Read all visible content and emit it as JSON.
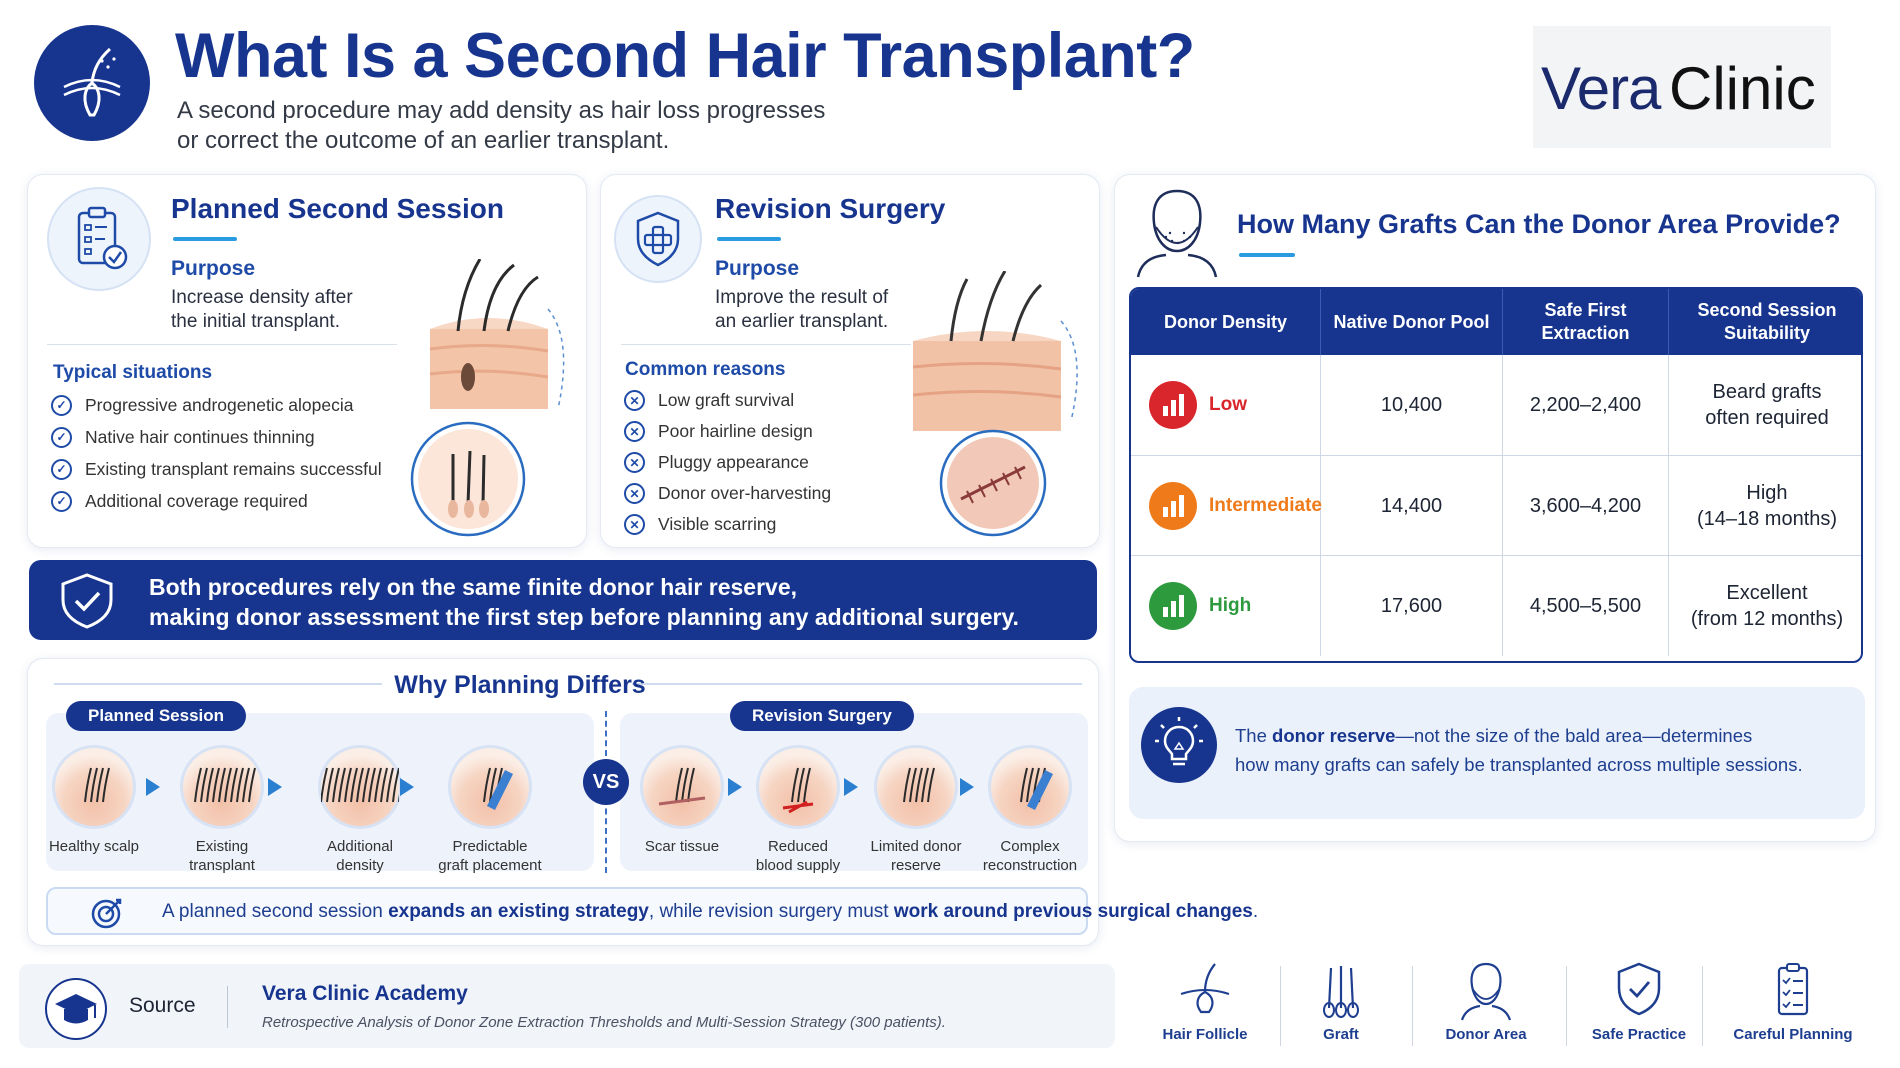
{
  "header": {
    "title": "What Is a Second Hair Transplant?",
    "subtitle_line1": "A second procedure may add density as hair loss progresses",
    "subtitle_line2": "or correct the outcome of an earlier transplant.",
    "logo_part1": "Vera",
    "logo_part2": "Clinic"
  },
  "planned": {
    "title": "Planned Second Session",
    "purpose_label": "Purpose",
    "purpose_line1": "Increase density after",
    "purpose_line2": "the initial transplant.",
    "list_title": "Typical situations",
    "items": [
      "Progressive androgenetic alopecia",
      "Native hair continues thinning",
      "Existing transplant remains successful",
      "Additional coverage required"
    ]
  },
  "revision": {
    "title": "Revision Surgery",
    "purpose_label": "Purpose",
    "purpose_line1": "Improve the result of",
    "purpose_line2": "an earlier transplant.",
    "list_title": "Common reasons",
    "items": [
      "Low graft survival",
      "Poor hairline design",
      "Pluggy appearance",
      "Donor over-harvesting",
      "Visible scarring"
    ]
  },
  "banner": {
    "line1": "Both procedures rely on the same finite donor hair reserve,",
    "line2": "making donor assessment the first step before planning any additional surgery."
  },
  "donor": {
    "title": "How Many Grafts Can the Donor Area Provide?",
    "headers": [
      "Donor Density",
      "Native Donor Pool",
      "Safe First Extraction",
      "Second Session Suitability"
    ],
    "rows": [
      {
        "density": "Low",
        "color": "#d8262c",
        "pool": "10,400",
        "extraction": "2,200–2,400",
        "suit1": "Beard grafts",
        "suit2": "often required"
      },
      {
        "density": "Intermediate",
        "color": "#ef7a1a",
        "pool": "14,400",
        "extraction": "3,600–4,200",
        "suit1": "High",
        "suit2": "(14–18 months)"
      },
      {
        "density": "High",
        "color": "#2e9a3e",
        "pool": "17,600",
        "extraction": "4,500–5,500",
        "suit1": "Excellent",
        "suit2": "(from 12 months)"
      }
    ],
    "note_pre": "The ",
    "note_bold": "donor reserve",
    "note_post": "—not the size of the bald area—determines",
    "note_line2": "how many grafts can safely be transplanted across multiple sessions."
  },
  "planning": {
    "title": "Why Planning Differs",
    "planned_label": "Planned Session",
    "revision_label": "Revision Surgery",
    "vs": "VS",
    "planned_steps": [
      {
        "l1": "Healthy scalp",
        "l2": ""
      },
      {
        "l1": "Existing",
        "l2": "transplant"
      },
      {
        "l1": "Additional",
        "l2": "density"
      },
      {
        "l1": "Predictable",
        "l2": "graft placement"
      }
    ],
    "revision_steps": [
      {
        "l1": "Scar tissue",
        "l2": ""
      },
      {
        "l1": "Reduced",
        "l2": "blood supply"
      },
      {
        "l1": "Limited donor",
        "l2": "reserve"
      },
      {
        "l1": "Complex",
        "l2": "reconstruction"
      }
    ],
    "summary_a": "A planned second session ",
    "summary_b": "expands an existing strategy",
    "summary_c": ", while revision surgery must ",
    "summary_d": "work around previous surgical changes",
    "summary_e": "."
  },
  "footer": {
    "source_label": "Source",
    "source_title": "Vera Clinic Academy",
    "source_desc": "Retrospective Analysis of Donor Zone Extraction Thresholds and Multi-Session Strategy (300 patients).",
    "icons": [
      "Hair Follicle",
      "Graft",
      "Donor Area",
      "Safe Practice",
      "Careful Planning"
    ]
  },
  "colors": {
    "navy": "#17358f",
    "accent": "#2a9be0",
    "low": "#d8262c",
    "intermediate": "#ef7a1a",
    "high": "#2e9a3e"
  }
}
